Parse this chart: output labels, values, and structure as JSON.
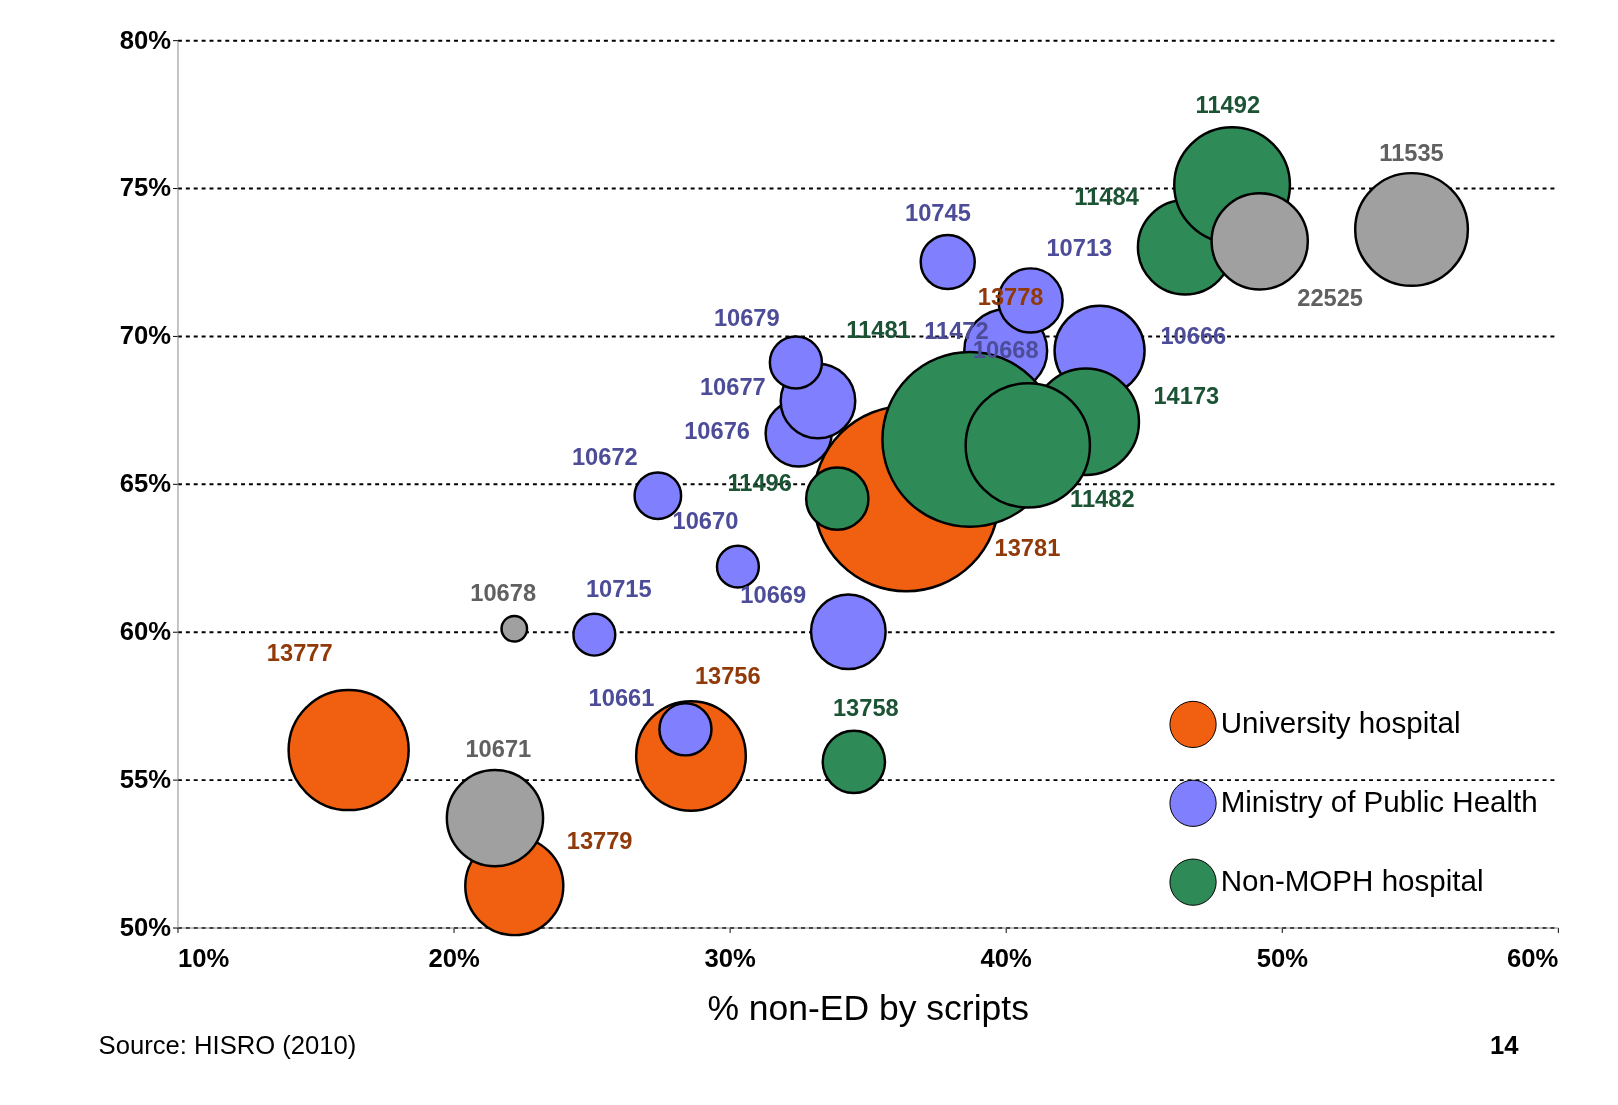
{
  "chart_data": {
    "type": "bubble",
    "xlabel": "% non-ED by scripts",
    "xlim": [
      10,
      60
    ],
    "xticks": [
      {
        "value": 10,
        "label": "10%"
      },
      {
        "value": 20,
        "label": "20%"
      },
      {
        "value": 30,
        "label": "30%"
      },
      {
        "value": 40,
        "label": "40%"
      },
      {
        "value": 50,
        "label": "50%"
      },
      {
        "value": 60,
        "label": "60%"
      }
    ],
    "ylim": [
      50,
      80
    ],
    "yticks": [
      {
        "value": 50,
        "label": "50%"
      },
      {
        "value": 55,
        "label": "55%"
      },
      {
        "value": 60,
        "label": "60%"
      },
      {
        "value": 65,
        "label": "65%"
      },
      {
        "value": 70,
        "label": "70%"
      },
      {
        "value": 75,
        "label": "75%"
      },
      {
        "value": 80,
        "label": "80%"
      }
    ],
    "grid": "y",
    "legend": "bottom right",
    "series": [
      {
        "name": "University hospital",
        "color": "#f06010",
        "x": [
          16.2,
          22.2,
          28.6,
          36.4
        ],
        "values": [
          56.0,
          51.4,
          55.8,
          64.5
        ],
        "sizes": [
          0.42,
          0.28,
          0.35,
          1
        ]
      },
      {
        "name": "Ministry of Public Health",
        "color": "#8080ff",
        "x": [
          25.1,
          28.4,
          27.4,
          30.3,
          34.3,
          32.5,
          33.2,
          32.4,
          40.0,
          43.4,
          37.9,
          40.9
        ],
        "values": [
          59.9,
          56.7,
          64.6,
          62.2,
          60.0,
          66.7,
          67.8,
          69.1,
          69.5,
          69.5,
          72.5,
          71.2
        ],
        "sizes": [
          0.051,
          0.079,
          0.063,
          0.051,
          0.162,
          0.127,
          0.162,
          0.079,
          0.2,
          0.236,
          0.085,
          0.12
        ]
      },
      {
        "name": "Non-MOPH hospital",
        "color": "#2e8b57",
        "x": [
          34.5,
          33.9,
          38.7,
          42.9,
          40.8,
          46.5,
          48.2
        ],
        "values": [
          55.6,
          64.5,
          66.5,
          67.1,
          66.3,
          73.0,
          75.1
        ],
        "sizes": [
          0.113,
          0.113,
          0.89,
          0.33,
          0.45,
          0.26,
          0.39
        ]
      },
      {
        "color": "#a0a0a0",
        "x": [
          21.5,
          22.2,
          49.2,
          54.7
        ],
        "values": [
          53.7,
          60.1,
          73.2,
          73.6
        ],
        "sizes": [
          0.27,
          0.019,
          0.27,
          0.37
        ]
      }
    ],
    "annotations": [
      "Source: HISRO (2010)",
      "14",
      "13778",
      "11472",
      "13777",
      "13781",
      "11481",
      "11482",
      {
        "text": "13779",
        "x": 22.2,
        "y": 51.4
      },
      {
        "text": "13756",
        "x": 28.6,
        "y": 55.8
      },
      {
        "text": "10715",
        "x": 25.1,
        "y": 59.9
      },
      {
        "text": "10661",
        "x": 28.4,
        "y": 56.7
      },
      {
        "text": "10672",
        "x": 27.4,
        "y": 64.6
      },
      {
        "text": "10670",
        "x": 30.3,
        "y": 62.2
      },
      {
        "text": "10669",
        "x": 34.3,
        "y": 60.0
      },
      {
        "text": "10676",
        "x": 32.5,
        "y": 66.7
      },
      {
        "text": "10677",
        "x": 33.2,
        "y": 67.8
      },
      {
        "text": "10679",
        "x": 32.4,
        "y": 69.1
      },
      {
        "text": "10668",
        "x": 40.0,
        "y": 69.5
      },
      {
        "text": "10666",
        "x": 43.4,
        "y": 69.5
      },
      {
        "text": "10745",
        "x": 37.9,
        "y": 72.5
      },
      {
        "text": "10713",
        "x": 40.9,
        "y": 71.2
      },
      {
        "text": "13758",
        "x": 34.5,
        "y": 55.6
      },
      {
        "text": "11496",
        "x": 33.9,
        "y": 64.5
      },
      {
        "text": "14173",
        "x": 42.9,
        "y": 67.1
      },
      {
        "text": "11484",
        "x": 46.5,
        "y": 73.0
      },
      {
        "text": "11492",
        "x": 48.2,
        "y": 75.1
      },
      {
        "text": "10671",
        "x": 21.5,
        "y": 53.7
      },
      {
        "text": "10678",
        "x": 22.2,
        "y": 60.1
      },
      {
        "text": "22525",
        "x": 49.2,
        "y": 73.2
      },
      {
        "text": "11535",
        "x": 54.7,
        "y": 73.6
      }
    ]
  }
}
